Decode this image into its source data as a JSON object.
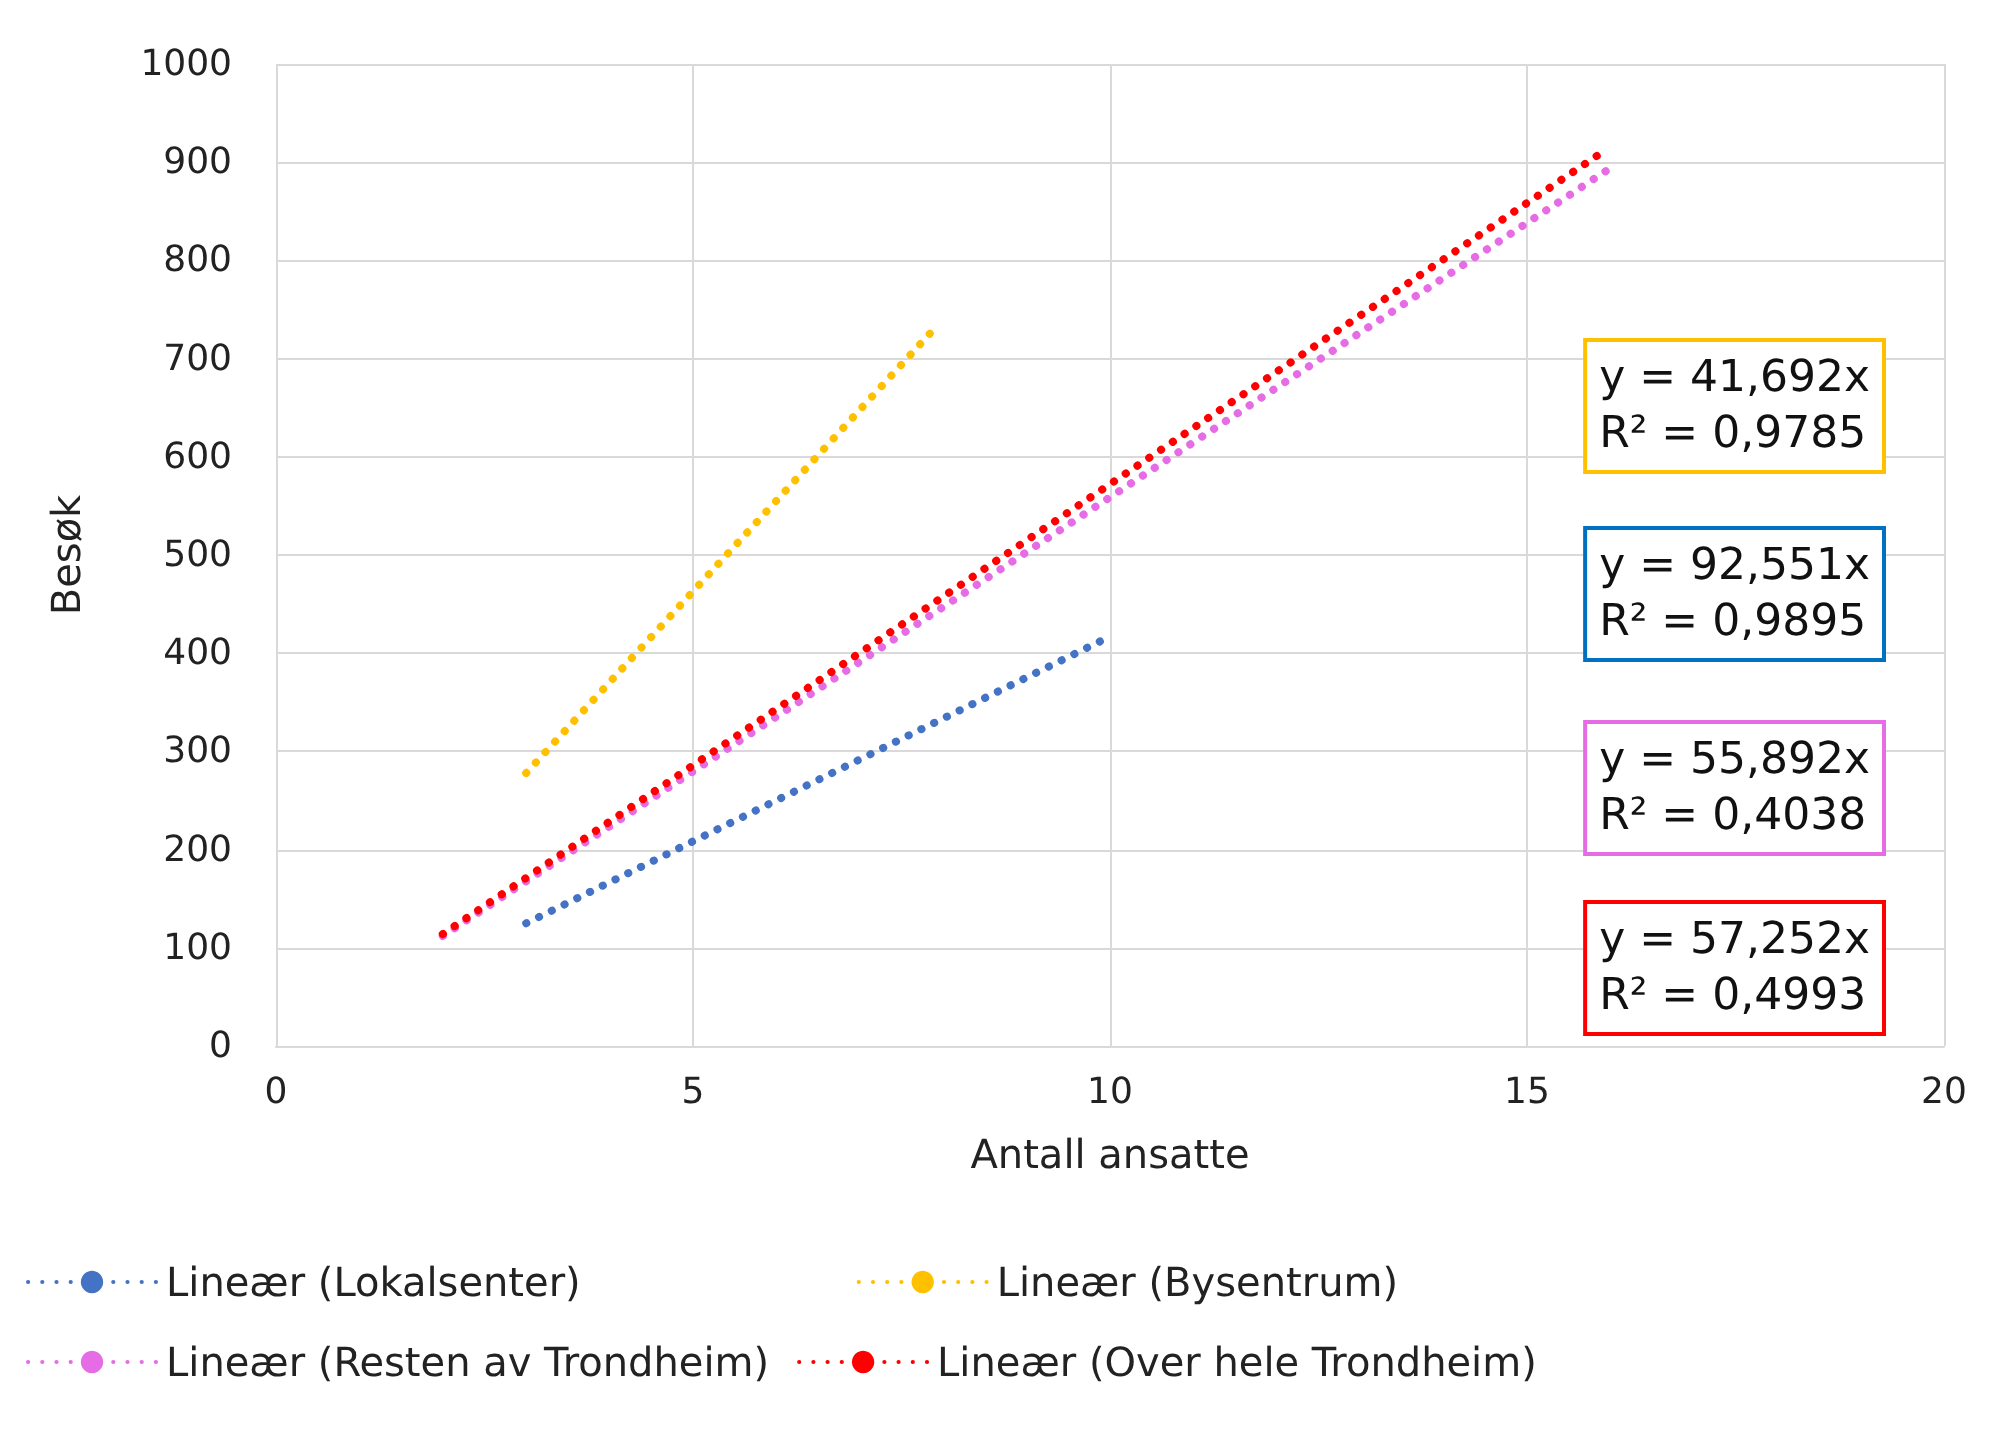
{
  "chart_data": {
    "type": "line",
    "xlabel": "Antall ansatte",
    "ylabel": "Besøk",
    "series": [
      {
        "name": "Lineær (Lokalsenter)",
        "color": "#4472c4",
        "x": [
          3,
          10
        ],
        "values": [
          125,
          417
        ]
      },
      {
        "name": "Lineær (Bysentrum)",
        "color": "#ffc000",
        "x": [
          3,
          7.9
        ],
        "values": [
          278,
          731
        ]
      },
      {
        "name": "Lineær (Resten av Trondheim)",
        "color": "#e66ce6",
        "x": [
          2,
          16
        ],
        "values": [
          112,
          894
        ]
      },
      {
        "name": "Lineær (Over hele Trondheim)",
        "color": "#ff0000",
        "x": [
          2,
          15.9
        ],
        "values": [
          114,
          910
        ]
      }
    ],
    "annotations": [
      "y = 41,692x\nR² = 0,9785",
      "y = 92,551x\nR² = 0,9895",
      "y = 55,892x\nR² = 0,4038",
      "y = 57,252x\nR² = 0,4993"
    ],
    "xlim": [
      0,
      20
    ],
    "xticks": [
      0,
      5,
      10,
      15,
      20
    ],
    "ylim": [
      0,
      1000
    ],
    "yticks": [
      0,
      100,
      200,
      300,
      400,
      500,
      600,
      700,
      800,
      900,
      1000
    ],
    "grid": true,
    "legend": "bottom",
    "marker": "none",
    "line_style": "dotted"
  }
}
